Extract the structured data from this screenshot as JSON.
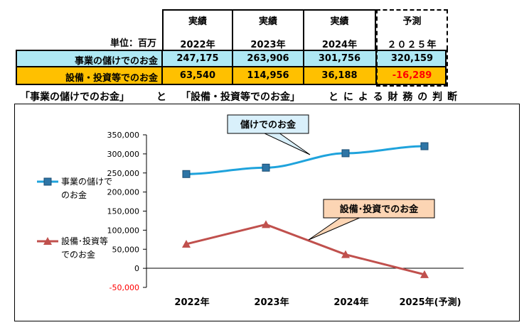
{
  "table": {
    "unit_label": "単位：百万",
    "columns": [
      {
        "kind": "実績",
        "year": "2022年"
      },
      {
        "kind": "実績",
        "year": "2023年"
      },
      {
        "kind": "実績",
        "year": "2024年"
      },
      {
        "kind": "予測",
        "year": "２０２５年"
      }
    ],
    "rows": [
      {
        "label": "事業の儲けでのお金",
        "values": [
          "247,175",
          "263,906",
          "301,756",
          "320,159"
        ]
      },
      {
        "label": "設備・投資等でのお金",
        "values": [
          "63,540",
          "114,956",
          "36,188",
          "-16,289"
        ]
      }
    ]
  },
  "chart_title": {
    "part1": "「事業の儲けでのお金」",
    "part2": "と",
    "part3": "「設備・投資等でのお金」",
    "part4": "と に よ る 財 務 の 判 断"
  },
  "colors": {
    "series1": "#1fa3dc",
    "series1_marker": "#2e75a6",
    "series2": "#c0504d",
    "row1_bg": "#aee8f4",
    "row2_bg": "#ffc000",
    "negative": "#ff0000",
    "callout_blue": "#d9f0fb",
    "callout_peach": "#fcd5b4"
  },
  "chart_data": {
    "type": "line",
    "categories": [
      "2022年",
      "2023年",
      "2024年",
      "2025年(予測)"
    ],
    "series": [
      {
        "name": "事業の儲けでのお金",
        "legend_lines": [
          "事業の儲けで",
          "のお金"
        ],
        "values": [
          247175,
          263906,
          301756,
          320159
        ],
        "marker": "square"
      },
      {
        "name": "設備・投資等でのお金",
        "legend_lines": [
          "設備･投資等",
          "でのお金"
        ],
        "values": [
          63540,
          114956,
          36188,
          -16289
        ],
        "marker": "triangle"
      }
    ],
    "ylim": [
      -50000,
      350000
    ],
    "yticks": [
      {
        "value": 350000,
        "label": "350,000"
      },
      {
        "value": 300000,
        "label": "300,000"
      },
      {
        "value": 250000,
        "label": "250,000"
      },
      {
        "value": 200000,
        "label": "200,000"
      },
      {
        "value": 150000,
        "label": "150,000"
      },
      {
        "value": 100000,
        "label": "100,000"
      },
      {
        "value": 50000,
        "label": "50,000"
      },
      {
        "value": 0,
        "label": "0"
      },
      {
        "value": -50000,
        "label": "-50,000"
      }
    ],
    "annotations": [
      "儲けでのお金",
      "設備･投資でのお金"
    ],
    "grid": false
  }
}
